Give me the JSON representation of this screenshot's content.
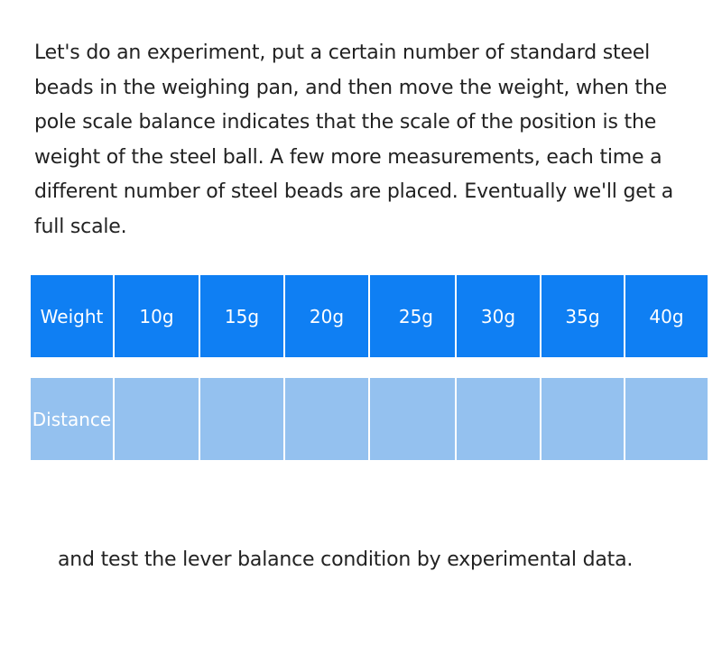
{
  "intro_text": "Let's do an experiment, put a certain number of standard steel beads in the weighing pan, and then move the weight, when the pole scale balance indicates that the scale of the position is the weight of the steel ball. A few more measurements, each time a different number of steel beads are placed. Eventually we'll get a full scale.",
  "table": {
    "weight_label": "Weight",
    "distance_label": "Distance",
    "weights": [
      "10g",
      "15g",
      "20g",
      "25g",
      "30g",
      "35g",
      "40g"
    ],
    "distances": [
      "",
      "",
      "",
      "",
      "",
      "",
      ""
    ]
  },
  "outro_text": "and test the lever balance condition by experimental data.",
  "colors": {
    "header_row": "#0f7ff3",
    "distance_row": "#94c1ef"
  }
}
